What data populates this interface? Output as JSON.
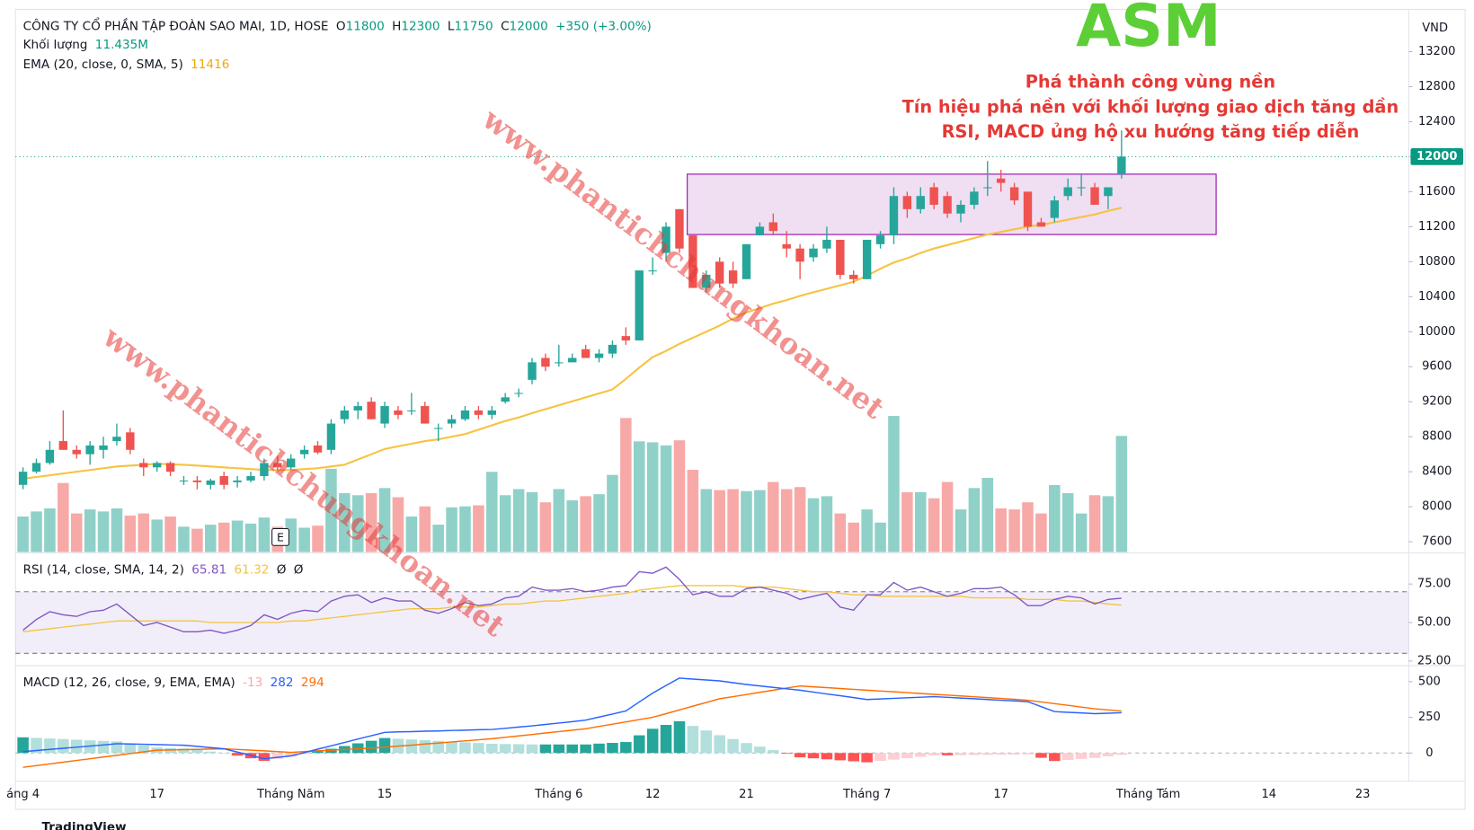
{
  "chart_data": {
    "type": "candlestick",
    "company": "CÔNG TY CỔ PHẦN TẬP ĐOÀN SAO MAI, 1D, HOSE",
    "ohlc_letters": [
      "O",
      "H",
      "L",
      "C"
    ],
    "change": "+350 (+3.00%)",
    "currency": "VND",
    "ticker": "ASM",
    "annotations": [
      "Phá thành công vùng nền",
      "Tín hiệu phá nền với khối lượng giao dịch tăng dần",
      "RSI, MACD ủng hộ xu hướng tăng tiếp diễn"
    ],
    "watermarks": [
      "www.phantichchungkhoan.net",
      "www.phantichchungkhoan.net"
    ],
    "event_marker": "E",
    "footer": "TradingView",
    "up_color": "#26a69a",
    "down_color": "#ef5350",
    "ylim": [
      7482,
      13661
    ],
    "yticks": [
      7600,
      8000,
      8400,
      8800,
      9200,
      9600,
      10000,
      10400,
      10800,
      11200,
      11600,
      12000,
      12400,
      12800,
      13200
    ],
    "range_box": {
      "low": 11110,
      "high": 11800,
      "color": "#9c27b0"
    },
    "categories": [
      "áng 4",
      null,
      null,
      null,
      null,
      null,
      null,
      null,
      null,
      null,
      "17",
      null,
      null,
      null,
      null,
      null,
      null,
      null,
      null,
      null,
      "Tháng Năm",
      null,
      null,
      null,
      null,
      null,
      null,
      "15",
      null,
      null,
      null,
      null,
      null,
      null,
      null,
      null,
      null,
      null,
      null,
      null,
      "Tháng 6",
      null,
      null,
      null,
      null,
      null,
      null,
      "12",
      null,
      null,
      null,
      null,
      null,
      null,
      "21",
      null,
      null,
      null,
      null,
      null,
      null,
      null,
      null,
      "Tháng 7",
      null,
      null,
      null,
      null,
      null,
      null,
      null,
      null,
      null,
      "17",
      null,
      null,
      null,
      null,
      null,
      null,
      null,
      null,
      null,
      null,
      "Tháng Tám",
      null,
      null,
      null,
      null,
      null,
      null,
      null,
      null,
      "14",
      null,
      null,
      null,
      null,
      null,
      null,
      "23",
      null,
      null,
      null
    ],
    "open": [
      8250,
      8400,
      8500,
      8750,
      8650,
      8600,
      8650,
      8750,
      8850,
      8500,
      8450,
      8500,
      8300,
      8300,
      8250,
      8350,
      8280,
      8300,
      8350,
      8500,
      8450,
      8600,
      8700,
      8650,
      9000,
      9100,
      9200,
      8950,
      9100,
      9100,
      9150,
      8900,
      8950,
      9000,
      9100,
      9050,
      9200,
      9300,
      9450,
      9700,
      9650,
      9650,
      9800,
      9700,
      9750,
      9950,
      9900,
      10700,
      10900,
      11400,
      11100,
      10500,
      10800,
      10700,
      10600,
      11100,
      11250,
      11000,
      10950,
      10850,
      10950,
      11050,
      10650,
      10600,
      11000,
      11100,
      11550,
      11400,
      11650,
      11550,
      11350,
      11450,
      11650,
      11750,
      11650,
      11600,
      11250,
      11300,
      11550,
      11650,
      11650,
      11550,
      11800,
      null,
      null,
      null,
      null,
      null,
      null,
      null,
      null,
      null,
      null,
      null,
      null,
      null,
      null,
      null,
      null,
      null,
      null,
      null,
      null,
      null
    ],
    "high": [
      8450,
      8550,
      8750,
      9100,
      8700,
      8750,
      8800,
      8950,
      8900,
      8550,
      8520,
      8520,
      8350,
      8350,
      8320,
      8400,
      8350,
      8400,
      8550,
      8580,
      8600,
      8700,
      8750,
      9000,
      9150,
      9200,
      9250,
      9200,
      9150,
      9300,
      9200,
      8950,
      9050,
      9150,
      9150,
      9150,
      9300,
      9350,
      9700,
      9750,
      9850,
      9750,
      9850,
      9800,
      9900,
      10050,
      10700,
      10850,
      11250,
      11400,
      11100,
      10700,
      10850,
      10800,
      11000,
      11250,
      11350,
      11150,
      11000,
      11000,
      11200,
      11050,
      10700,
      11050,
      11150,
      11650,
      11600,
      11650,
      11700,
      11600,
      11500,
      11650,
      11950,
      11850,
      11700,
      11600,
      11300,
      11550,
      11750,
      11800,
      11700,
      11650,
      12300,
      null,
      null,
      null,
      null,
      null,
      null,
      null,
      null,
      null,
      null,
      null,
      null,
      null,
      null,
      null,
      null,
      null,
      null,
      null,
      null,
      null
    ],
    "low": [
      8200,
      8380,
      8480,
      8650,
      8550,
      8480,
      8550,
      8700,
      8600,
      8350,
      8400,
      8350,
      8250,
      8200,
      8200,
      8200,
      8220,
      8280,
      8300,
      8400,
      8420,
      8550,
      8600,
      8600,
      8950,
      9000,
      9000,
      8900,
      9000,
      9050,
      8950,
      8750,
      8900,
      8980,
      9000,
      9000,
      9180,
      9250,
      9400,
      9550,
      9600,
      9650,
      9700,
      9650,
      9700,
      9850,
      9900,
      10650,
      10800,
      10900,
      10500,
      10450,
      10500,
      10500,
      10600,
      11100,
      11100,
      10850,
      10600,
      10800,
      10900,
      10600,
      10550,
      10600,
      10950,
      11000,
      11300,
      11350,
      11400,
      11300,
      11250,
      11400,
      11550,
      11600,
      11450,
      11150,
      11200,
      11250,
      11500,
      11550,
      11450,
      11400,
      11750,
      null,
      null,
      null,
      null,
      null,
      null,
      null,
      null,
      null,
      null,
      null,
      null,
      null,
      null,
      null,
      null,
      null,
      null,
      null,
      null,
      null
    ],
    "close": [
      8400,
      8500,
      8650,
      8650,
      8600,
      8700,
      8700,
      8800,
      8650,
      8450,
      8500,
      8400,
      8300,
      8280,
      8300,
      8250,
      8300,
      8350,
      8500,
      8450,
      8550,
      8650,
      8620,
      8950,
      9100,
      9150,
      9000,
      9150,
      9050,
      9100,
      8950,
      8900,
      9000,
      9100,
      9050,
      9100,
      9250,
      9300,
      9650,
      9600,
      9650,
      9700,
      9700,
      9750,
      9850,
      9900,
      10700,
      10700,
      11200,
      10950,
      10500,
      10650,
      10550,
      10550,
      11000,
      11200,
      11150,
      10950,
      10800,
      10950,
      11050,
      10650,
      10600,
      11050,
      11100,
      11550,
      11400,
      11550,
      11450,
      11350,
      11450,
      11600,
      11650,
      11700,
      11500,
      11200,
      11200,
      11500,
      11650,
      11650,
      11450,
      11650,
      12000,
      null,
      null,
      null,
      null,
      null,
      null,
      null,
      null,
      null,
      null,
      null,
      null,
      null,
      null,
      null,
      null,
      null,
      null,
      null,
      null,
      null
    ],
    "volume": {
      "title": "Khối lượng",
      "header_value": "11.435M",
      "values": [
        3.5,
        4.0,
        4.3,
        6.8,
        3.8,
        4.2,
        4.0,
        4.3,
        3.6,
        3.8,
        3.2,
        3.5,
        2.5,
        2.3,
        2.7,
        2.9,
        3.1,
        2.8,
        3.4,
        2.5,
        3.3,
        2.4,
        2.6,
        8.2,
        5.8,
        5.6,
        5.8,
        6.3,
        5.4,
        3.5,
        4.5,
        2.7,
        4.4,
        4.5,
        4.6,
        7.9,
        5.6,
        6.2,
        5.9,
        4.9,
        6.2,
        5.1,
        5.5,
        5.7,
        7.6,
        13.2,
        10.9,
        10.8,
        10.5,
        11.0,
        8.1,
        6.2,
        6.1,
        6.2,
        6.0,
        6.1,
        6.9,
        6.2,
        6.4,
        5.3,
        5.5,
        3.8,
        2.9,
        4.2,
        2.9,
        13.4,
        5.9,
        5.9,
        5.3,
        6.9,
        4.2,
        6.3,
        7.3,
        4.3,
        4.2,
        4.9,
        3.8,
        6.6,
        5.8,
        3.8,
        5.6,
        5.5,
        11.435,
        null,
        null,
        null,
        null,
        null,
        null,
        null,
        null,
        null,
        null,
        null,
        null,
        null,
        null,
        null,
        null,
        null,
        null,
        null,
        null,
        null
      ],
      "up_color": "#8fd1c8",
      "down_color": "#f7a9a7"
    },
    "ema": {
      "title": "EMA (20, close, 0, SMA, 5)",
      "color": "#f7c23e",
      "values": [
        8320,
        8340,
        8360,
        8380,
        8400,
        8420,
        8440,
        8460,
        8470,
        8480,
        8490,
        8485,
        8480,
        8470,
        8460,
        8450,
        8440,
        8430,
        8420,
        8420,
        8420,
        8430,
        8440,
        8460,
        8480,
        8540,
        8600,
        8660,
        8690,
        8720,
        8750,
        8770,
        8800,
        8830,
        8880,
        8930,
        8980,
        9020,
        9070,
        9115,
        9160,
        9205,
        9250,
        9295,
        9340,
        9460,
        9590,
        9710,
        9780,
        9860,
        9930,
        10000,
        10070,
        10150,
        10220,
        10270,
        10320,
        10360,
        10410,
        10450,
        10490,
        10530,
        10570,
        10640,
        10720,
        10790,
        10840,
        10900,
        10950,
        10990,
        11030,
        11070,
        11110,
        11140,
        11170,
        11200,
        11220,
        11250,
        11280,
        11310,
        11340,
        11380,
        11416,
        null,
        null,
        null,
        null,
        null,
        null,
        null,
        null,
        null,
        null,
        null,
        null,
        null,
        null,
        null,
        null,
        null,
        null,
        null,
        null,
        null
      ]
    },
    "rsi": {
      "title": "RSI (14, close, SMA, 14, 2)",
      "extras": [
        "Ø",
        "Ø"
      ],
      "color": "#7e57c2",
      "sma_color": "#f5c342",
      "ylim": [
        24.4,
        92.7
      ],
      "yticks": [
        {
          "value": 25,
          "label": "25.00"
        },
        {
          "value": 50,
          "label": "50.00"
        },
        {
          "value": 75,
          "label": "75.00"
        }
      ],
      "band": [
        30,
        70
      ],
      "values": [
        45,
        52,
        57,
        55,
        54,
        57,
        58,
        62,
        55,
        48,
        50,
        47,
        44,
        44,
        45,
        43,
        45,
        48,
        55,
        52,
        56,
        58,
        57,
        64,
        67,
        68,
        63,
        66,
        64,
        64,
        58,
        56,
        59,
        63,
        61,
        62,
        66,
        67,
        73,
        71,
        71,
        72,
        70,
        71,
        73,
        74,
        83,
        82,
        86,
        78,
        68,
        70,
        67,
        67,
        72,
        73,
        71,
        69,
        65,
        67,
        69,
        60,
        58,
        68,
        68,
        76,
        71,
        73,
        70,
        67,
        69,
        72,
        72,
        73,
        68,
        61,
        61,
        65,
        67,
        66,
        62,
        65,
        65.81,
        null,
        null,
        null,
        null,
        null,
        null,
        null,
        null,
        null,
        null,
        null,
        null,
        null,
        null,
        null,
        null,
        null,
        null,
        null,
        null,
        null
      ],
      "sma": [
        44,
        45,
        46,
        47,
        48,
        49,
        50,
        51,
        51,
        51,
        51,
        51,
        51,
        51,
        50,
        50,
        50,
        50,
        50,
        50,
        51,
        51,
        52,
        53,
        54,
        55,
        56,
        57,
        58,
        59,
        59,
        59,
        60,
        60,
        60,
        61,
        62,
        62,
        63,
        64,
        64,
        65,
        66,
        67,
        68,
        69,
        71,
        72,
        73,
        74,
        74,
        74,
        74,
        74,
        73,
        73,
        73,
        72,
        71,
        70,
        70,
        69,
        68,
        68,
        67,
        67,
        67,
        67,
        67,
        67,
        67,
        66,
        66,
        66,
        66,
        65,
        65,
        65,
        64,
        64,
        63,
        62,
        61.32,
        null,
        null,
        null,
        null,
        null,
        null,
        null,
        null,
        null,
        null,
        null,
        null,
        null,
        null,
        null,
        null,
        null,
        null,
        null,
        null,
        null
      ]
    },
    "macd": {
      "title": "MACD (12, 26, close, 9, EMA, EMA)",
      "color": "#2962ff",
      "signal_color": "#ff6d00",
      "hist_colors": [
        "#26a69a",
        "#b2dfdb",
        "#ffcdd2",
        "#ff5252"
      ],
      "ylim": [
        -184,
        592
      ],
      "yticks": [
        0,
        250,
        500
      ],
      "values": [
        10,
        18,
        26,
        34,
        41,
        49,
        57,
        65,
        63,
        61,
        59,
        57,
        55,
        47,
        38,
        30,
        7,
        -17,
        -40,
        -30,
        -20,
        3,
        27,
        50,
        74,
        98,
        121,
        145,
        148,
        150,
        153,
        155,
        158,
        160,
        163,
        165,
        173,
        182,
        190,
        200,
        210,
        220,
        230,
        252,
        273,
        295,
        358,
        420,
        473,
        525,
        518,
        512,
        505,
        493,
        480,
        470,
        460,
        450,
        440,
        427,
        414,
        401,
        388,
        375,
        379,
        383,
        387,
        391,
        395,
        390,
        385,
        380,
        375,
        370,
        365,
        360,
        325,
        290,
        285,
        281,
        276,
        279,
        282,
        null,
        null,
        null,
        null,
        null,
        null,
        null,
        null,
        null,
        null,
        null,
        null,
        null,
        null,
        null,
        null,
        null,
        null,
        null,
        null,
        null
      ],
      "signal": [
        -100,
        -88,
        -76,
        -64,
        -52,
        -40,
        -28,
        -16,
        -4,
        8,
        20,
        22,
        24,
        26,
        28,
        30,
        25,
        20,
        15,
        10,
        5,
        10,
        15,
        20,
        25,
        30,
        35,
        40,
        48,
        55,
        63,
        70,
        78,
        85,
        93,
        100,
        110,
        120,
        130,
        140,
        150,
        160,
        170,
        186,
        202,
        218,
        234,
        250,
        276,
        302,
        328,
        354,
        380,
        395,
        410,
        425,
        440,
        455,
        470,
        464,
        458,
        452,
        446,
        440,
        434,
        429,
        423,
        417,
        411,
        406,
        400,
        394,
        388,
        382,
        376,
        370,
        358,
        346,
        334,
        322,
        310,
        302,
        294,
        null,
        null,
        null,
        null,
        null,
        null,
        null,
        null,
        null,
        null,
        null,
        null,
        null,
        null,
        null,
        null,
        null,
        null,
        null,
        null,
        null
      ],
      "hist": [
        110,
        106,
        102,
        98,
        93,
        89,
        85,
        81,
        67,
        53,
        39,
        35,
        31,
        21,
        10,
        0,
        -18,
        -37,
        -55,
        -40,
        -25,
        -7,
        12,
        30,
        49,
        68,
        86,
        105,
        100,
        95,
        90,
        85,
        80,
        75,
        70,
        65,
        63,
        62,
        60,
        60,
        60,
        60,
        60,
        66,
        71,
        77,
        124,
        170,
        197,
        223,
        190,
        158,
        125,
        98,
        70,
        45,
        20,
        -5,
        -30,
        -37,
        -44,
        -51,
        -58,
        -65,
        -55,
        -46,
        -36,
        -26,
        -16,
        -16,
        -15,
        -14,
        -13,
        -12,
        -11,
        -10,
        -33,
        -56,
        -49,
        -41,
        -34,
        -23,
        -13,
        null,
        null,
        null,
        null,
        null,
        null,
        null,
        null,
        null,
        null,
        null,
        null,
        null,
        null,
        null,
        null,
        null,
        null,
        null,
        null,
        null
      ]
    }
  }
}
